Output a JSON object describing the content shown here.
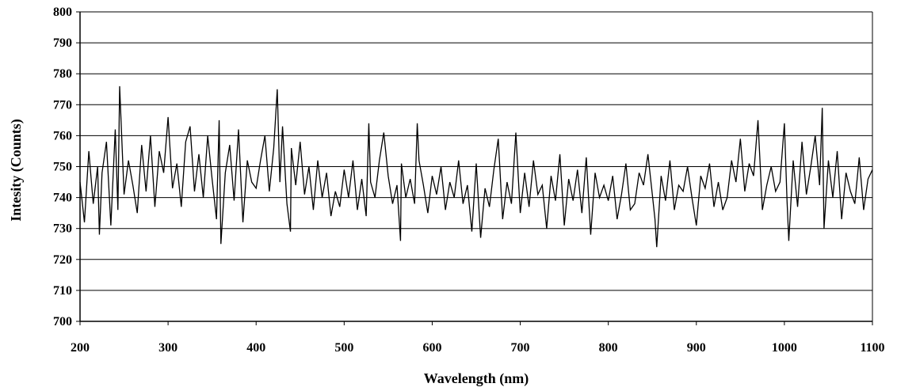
{
  "chart_data": {
    "type": "line",
    "title": "",
    "xlabel": "Wavelength (nm)",
    "ylabel": "Intesity (Counts)",
    "xlim": [
      200,
      1100
    ],
    "ylim": [
      700,
      800
    ],
    "x_ticks": [
      200,
      300,
      400,
      500,
      600,
      700,
      800,
      900,
      1000,
      1100
    ],
    "y_ticks": [
      700,
      710,
      720,
      730,
      740,
      750,
      760,
      770,
      780,
      790,
      800
    ],
    "grid": "horizontal",
    "legend": "none",
    "series": [
      {
        "color": "#000000",
        "x": [
          200,
          205,
          210,
          215,
          220,
          222,
          225,
          230,
          235,
          240,
          243,
          245,
          250,
          255,
          260,
          265,
          270,
          275,
          280,
          285,
          290,
          295,
          300,
          305,
          310,
          315,
          320,
          325,
          330,
          335,
          340,
          345,
          350,
          355,
          358,
          360,
          365,
          370,
          375,
          380,
          385,
          390,
          395,
          400,
          405,
          410,
          415,
          420,
          424,
          427,
          430,
          435,
          439,
          440,
          445,
          450,
          455,
          460,
          465,
          470,
          475,
          480,
          485,
          490,
          495,
          500,
          505,
          510,
          515,
          520,
          525,
          528,
          530,
          535,
          540,
          545,
          550,
          555,
          560,
          564,
          565,
          570,
          575,
          580,
          583,
          585,
          590,
          595,
          600,
          605,
          610,
          615,
          620,
          625,
          630,
          635,
          640,
          645,
          650,
          655,
          660,
          665,
          670,
          675,
          680,
          685,
          690,
          695,
          700,
          705,
          710,
          715,
          720,
          725,
          730,
          735,
          740,
          745,
          750,
          755,
          760,
          765,
          770,
          775,
          780,
          785,
          790,
          795,
          800,
          805,
          810,
          815,
          820,
          825,
          830,
          835,
          840,
          845,
          850,
          853,
          855,
          860,
          865,
          870,
          875,
          880,
          885,
          890,
          895,
          900,
          905,
          910,
          915,
          920,
          925,
          930,
          935,
          940,
          945,
          950,
          955,
          960,
          965,
          970,
          975,
          980,
          985,
          990,
          995,
          1000,
          1003,
          1005,
          1010,
          1015,
          1020,
          1025,
          1030,
          1035,
          1040,
          1043,
          1045,
          1050,
          1055,
          1060,
          1065,
          1070,
          1075,
          1080,
          1085,
          1090,
          1095,
          1100
        ],
        "y": [
          745,
          732,
          755,
          738,
          750,
          728,
          748,
          758,
          731,
          762,
          736,
          776,
          741,
          752,
          744,
          735,
          757,
          742,
          760,
          737,
          755,
          748,
          766,
          743,
          751,
          737,
          758,
          763,
          742,
          754,
          740,
          760,
          746,
          733,
          765,
          725,
          748,
          757,
          739,
          762,
          732,
          752,
          745,
          743,
          752,
          760,
          742,
          756,
          775,
          745,
          763,
          738,
          729,
          756,
          744,
          758,
          741,
          750,
          736,
          752,
          740,
          748,
          734,
          742,
          737,
          749,
          740,
          752,
          736,
          746,
          734,
          764,
          745,
          740,
          752,
          761,
          747,
          738,
          744,
          726,
          751,
          740,
          746,
          738,
          764,
          752,
          744,
          735,
          747,
          741,
          750,
          736,
          745,
          740,
          752,
          738,
          744,
          729,
          751,
          727,
          743,
          737,
          749,
          759,
          733,
          745,
          738,
          761,
          735,
          748,
          737,
          752,
          741,
          744,
          730,
          747,
          739,
          754,
          731,
          746,
          739,
          749,
          735,
          753,
          728,
          748,
          740,
          744,
          739,
          747,
          733,
          741,
          751,
          736,
          738,
          748,
          744,
          754,
          741,
          733,
          724,
          747,
          739,
          752,
          736,
          744,
          742,
          750,
          740,
          731,
          747,
          743,
          751,
          737,
          745,
          736,
          740,
          752,
          745,
          759,
          742,
          751,
          747,
          765,
          736,
          744,
          750,
          742,
          745,
          764,
          739,
          726,
          752,
          737,
          758,
          741,
          750,
          760,
          744,
          769,
          730,
          752,
          740,
          755,
          733,
          748,
          742,
          738,
          753,
          736,
          746,
          749
        ]
      }
    ]
  }
}
